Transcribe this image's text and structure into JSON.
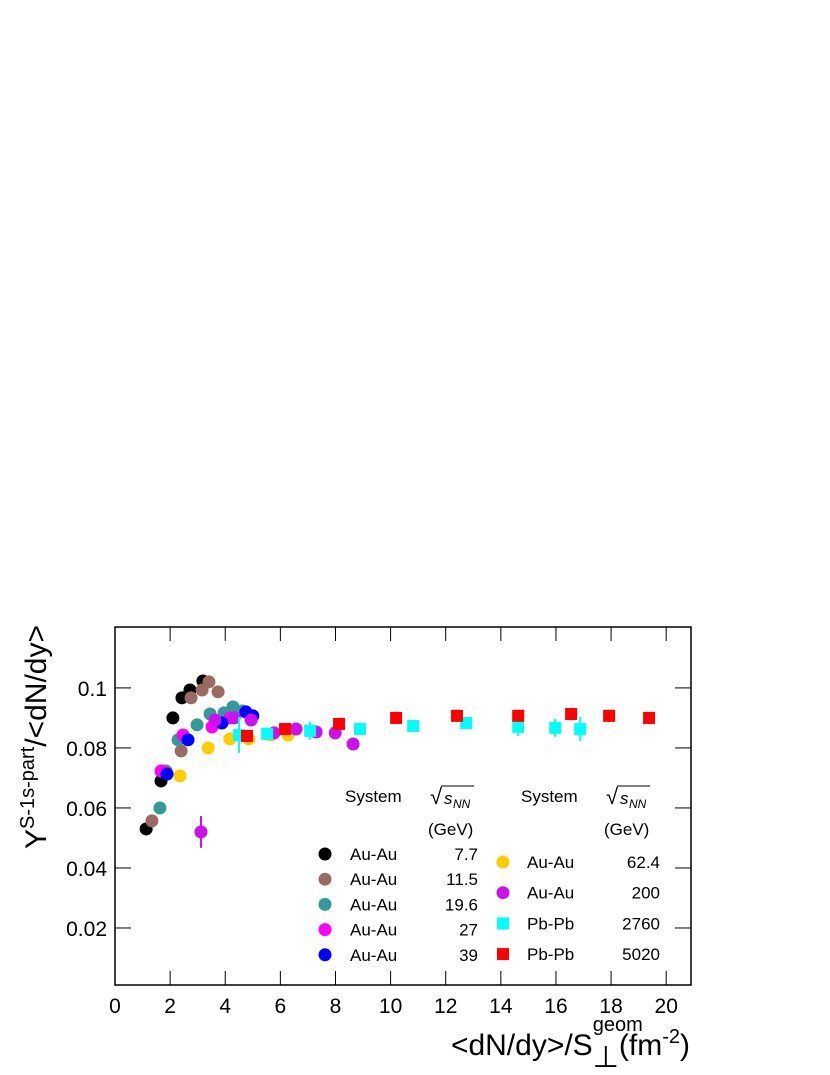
{
  "chart_data": {
    "type": "scatter",
    "ylabel": {
      "main": "Y",
      "sup": "S-1s-part",
      "rest": "/<dN/dy>"
    },
    "xlabel": {
      "main": "<dN/dy>/S",
      "sub": "⊥",
      "sup": "geom",
      "unit": "(fm",
      "unitsup": "-2",
      "close": ")"
    },
    "legend_header": {
      "system": "System",
      "sqrt": "√",
      "s": "s",
      "nn": "NN",
      "unit": "(GeV)"
    },
    "xlim": [
      0,
      20.9
    ],
    "ylim": [
      0.001,
      0.1203
    ],
    "xticks": [
      0,
      2,
      4,
      6,
      8,
      10,
      12,
      14,
      16,
      18,
      20
    ],
    "yticks": [
      0.02,
      0.04,
      0.06,
      0.08,
      0.1
    ],
    "series": [
      {
        "name": "Au-Au",
        "energy": 7.7,
        "color": "#000000",
        "marker": "circle",
        "x": [
          1.13,
          1.67,
          2.1,
          2.43,
          2.72,
          3.19
        ],
        "values": [
          0.053,
          0.069,
          0.09,
          0.0967,
          0.0993,
          0.1023
        ]
      },
      {
        "name": "Au-Au",
        "energy": 11.5,
        "color": "#9b6b62",
        "marker": "circle",
        "x": [
          1.34,
          1.85,
          2.4,
          2.76,
          3.16,
          3.41,
          3.74
        ],
        "values": [
          0.0557,
          0.0723,
          0.079,
          0.0967,
          0.0993,
          0.102,
          0.0987
        ]
      },
      {
        "name": "Au-Au",
        "energy": 19.6,
        "color": "#339999",
        "marker": "circle",
        "x": [
          1.63,
          2.29,
          2.98,
          3.45,
          3.96,
          4.28,
          4.61
        ],
        "values": [
          0.06,
          0.0827,
          0.0877,
          0.0913,
          0.0917,
          0.0937,
          0.0923
        ]
      },
      {
        "name": "Au-Au",
        "energy": 27,
        "color": "#ff00ff",
        "marker": "circle",
        "x": [
          1.67,
          2.47,
          3.52,
          4.17
        ],
        "values": [
          0.0723,
          0.0843,
          0.087,
          0.09
        ]
      },
      {
        "name": "Au-Au",
        "energy": 39,
        "color": "#0000ff",
        "marker": "circle",
        "x": [
          1.89,
          2.65,
          3.88,
          4.75,
          5.0
        ],
        "values": [
          0.0713,
          0.0827,
          0.0883,
          0.092,
          0.0907
        ]
      },
      {
        "name": "Au-Au",
        "energy": 62.4,
        "color": "#ffcc00",
        "marker": "circle",
        "x": [
          2.36,
          3.38,
          4.17,
          4.86,
          5.66,
          6.28
        ],
        "values": [
          0.0707,
          0.08,
          0.083,
          0.083,
          0.0843,
          0.0843
        ]
      },
      {
        "name": "Au-Au",
        "energy": 200,
        "color": "#cc11ee",
        "marker": "circle",
        "x": [
          3.12,
          3.63,
          4.32,
          4.94,
          5.77,
          6.57,
          7.3,
          7.99,
          8.64
        ],
        "values": [
          0.052,
          0.0893,
          0.09,
          0.0893,
          0.085,
          0.0863,
          0.0853,
          0.085,
          0.0813
        ],
        "errors": [
          0.0053,
          0.001,
          0.001,
          0.001,
          0.001,
          0.001,
          0.001,
          0.001,
          0.001
        ]
      },
      {
        "name": "Pb-Pb",
        "energy": 2760,
        "color": "#00ffff",
        "marker": "square",
        "x": [
          4.5,
          5.52,
          7.08,
          8.89,
          10.82,
          12.74,
          14.63,
          15.97,
          16.88
        ],
        "values": [
          0.0843,
          0.0847,
          0.0857,
          0.0863,
          0.0873,
          0.0883,
          0.087,
          0.0867,
          0.0863
        ],
        "errors": [
          0.006,
          0.002,
          0.003,
          0.002,
          0.002,
          0.002,
          0.003,
          0.003,
          0.004
        ]
      },
      {
        "name": "Pb-Pb",
        "energy": 5020,
        "color": "#ff0000",
        "marker": "square",
        "x": [
          4.79,
          6.17,
          8.13,
          10.2,
          12.41,
          14.63,
          16.55,
          17.93,
          19.38
        ],
        "values": [
          0.084,
          0.0863,
          0.088,
          0.09,
          0.0907,
          0.0907,
          0.0913,
          0.0907,
          0.09
        ],
        "errors": [
          0.002,
          0.002,
          0.002,
          0.002,
          0.002,
          0.002,
          0.002,
          0.002,
          0.002
        ]
      }
    ]
  }
}
